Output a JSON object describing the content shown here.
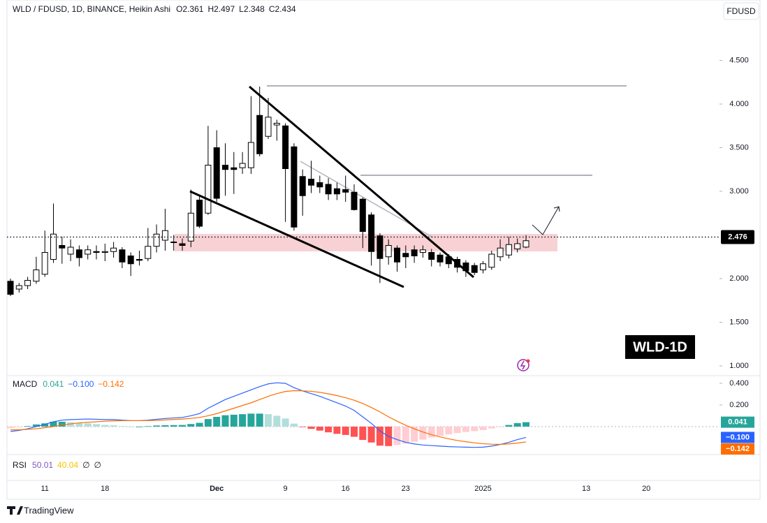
{
  "chart_data": [
    {
      "type": "candlestick",
      "title": "WLD / FDUSD, 1D, BINANCE, Heikin Ashi",
      "ohlc_labels": [
        "O",
        "H",
        "L",
        "C"
      ],
      "currency": "FDUSD",
      "watermark": "WLD-1D",
      "last_price": 2.476,
      "up_color": "#ffffff",
      "down_color": "#000000",
      "categories": [
        null,
        null,
        null,
        null,
        "11",
        null,
        null,
        null,
        null,
        null,
        null,
        "18",
        null,
        null,
        null,
        null,
        null,
        null,
        null,
        null,
        null,
        null,
        null,
        null,
        "Dec",
        null,
        null,
        null,
        null,
        null,
        null,
        null,
        "9",
        null,
        null,
        null,
        null,
        null,
        null,
        "16",
        null,
        null,
        null,
        null,
        null,
        null,
        "23",
        null,
        null,
        null,
        null,
        null,
        null,
        null,
        null,
        "2025",
        null,
        null,
        null,
        null,
        null,
        null,
        null,
        null,
        null,
        null,
        null,
        "13",
        null,
        null,
        null,
        null,
        null,
        null,
        "20",
        null,
        null,
        null,
        null,
        null,
        null,
        null
      ],
      "open": [
        1.97,
        1.88,
        1.92,
        1.97,
        2.05,
        2.22,
        2.38,
        2.28,
        2.33,
        2.28,
        2.31,
        2.3,
        2.31,
        2.33,
        2.26,
        2.22,
        2.23,
        2.37,
        2.44,
        2.42,
        2.4,
        2.43,
        2.9,
        2.75,
        3.5,
        3.3,
        3.27,
        3.27,
        3.27,
        3.87,
        3.63,
        3.76,
        3.75,
        3.51,
        3.17,
        3.14,
        3.1,
        3.08,
        3.03,
        3.02,
        2.99,
        2.91,
        2.73,
        2.49,
        2.25,
        2.35,
        2.29,
        2.33,
        2.3,
        2.3,
        2.27,
        2.25,
        2.22,
        2.18,
        2.15,
        2.1,
        2.13,
        2.25,
        2.27,
        2.34,
        2.361,
        null,
        null,
        null,
        null,
        null,
        null,
        null,
        null,
        null,
        null,
        null,
        null,
        null,
        null,
        null,
        null,
        null,
        null,
        null,
        null,
        null
      ],
      "high": [
        2.0,
        1.95,
        2.02,
        2.25,
        2.55,
        2.86,
        2.48,
        2.45,
        2.38,
        2.38,
        2.38,
        2.4,
        2.42,
        2.36,
        2.3,
        2.32,
        2.58,
        2.62,
        2.8,
        2.5,
        2.46,
        3.02,
        2.95,
        3.75,
        3.7,
        3.55,
        3.45,
        3.45,
        4.09,
        4.2,
        4.07,
        3.82,
        3.78,
        3.55,
        3.25,
        3.35,
        3.18,
        3.15,
        3.1,
        3.18,
        3.08,
        2.93,
        2.76,
        2.52,
        2.45,
        2.38,
        2.38,
        2.38,
        2.38,
        2.34,
        2.3,
        2.28,
        2.25,
        2.21,
        2.18,
        2.2,
        2.32,
        2.45,
        2.48,
        2.46,
        2.497,
        null,
        null,
        null,
        null,
        null,
        null,
        null,
        null,
        null,
        null,
        null,
        null,
        null,
        null,
        null,
        null,
        null,
        null,
        null,
        null,
        null
      ],
      "low": [
        1.8,
        1.84,
        1.88,
        1.94,
        2.02,
        2.18,
        2.17,
        2.2,
        2.14,
        2.22,
        2.22,
        2.2,
        2.24,
        2.12,
        2.03,
        2.15,
        2.2,
        2.3,
        2.32,
        2.32,
        2.32,
        2.36,
        2.58,
        2.73,
        2.88,
        2.95,
        2.97,
        3.2,
        3.2,
        3.4,
        3.6,
        3.58,
        2.65,
        2.55,
        2.72,
        2.98,
        2.98,
        2.9,
        2.9,
        2.88,
        2.78,
        2.35,
        2.15,
        1.95,
        2.16,
        2.08,
        2.12,
        2.18,
        2.24,
        2.14,
        2.14,
        2.12,
        2.07,
        2.02,
        2.04,
        2.06,
        2.1,
        2.2,
        2.23,
        2.3,
        2.348,
        null,
        null,
        null,
        null,
        null,
        null,
        null,
        null,
        null,
        null,
        null,
        null,
        null,
        null,
        null,
        null,
        null,
        null,
        null,
        null,
        null
      ],
      "close": [
        1.82,
        1.92,
        1.98,
        2.1,
        2.3,
        2.51,
        2.35,
        2.36,
        2.24,
        2.33,
        2.3,
        2.31,
        2.35,
        2.19,
        2.17,
        2.21,
        2.37,
        2.51,
        2.55,
        2.42,
        2.38,
        2.75,
        2.6,
        3.3,
        2.92,
        3.25,
        3.25,
        3.32,
        3.56,
        3.43,
        3.85,
        3.78,
        3.26,
        2.59,
        2.95,
        3.07,
        3.05,
        2.97,
        2.97,
        2.99,
        2.79,
        2.54,
        2.31,
        2.23,
        2.38,
        2.19,
        2.25,
        2.26,
        2.33,
        2.22,
        2.19,
        2.17,
        2.13,
        2.09,
        2.07,
        2.17,
        2.28,
        2.35,
        2.39,
        2.4,
        2.434,
        null,
        null,
        null,
        null,
        null,
        null,
        null,
        null,
        null,
        null,
        null,
        null,
        null,
        null,
        null,
        null,
        null,
        null,
        null,
        null,
        null
      ],
      "ylim": [
        0.888,
        5.192
      ],
      "yticks": [
        {
          "value": 1,
          "label": "1.000"
        },
        {
          "value": 1.5,
          "label": "1.500"
        },
        {
          "value": 2,
          "label": "2.000"
        },
        {
          "value": 3,
          "label": "3.000"
        },
        {
          "value": 3.5,
          "label": "3.500"
        },
        {
          "value": 4,
          "label": "4.000"
        },
        {
          "value": 4.5,
          "label": "4.500"
        }
      ]
    },
    {
      "type": "macd",
      "title": "MACD",
      "histogram": {
        "colors": [
          "#26a69a",
          "#b2dfdb",
          "#ff5252",
          "#ffcdd2"
        ],
        "color": "#26a69a",
        "last_label": "0.041",
        "values": [
          -0.015,
          -0.005,
          0.005,
          0.02,
          0.03,
          0.045,
          0.045,
          0.04,
          0.033,
          0.03,
          0.023,
          0.015,
          0.012,
          0.005,
          0,
          0,
          0.004,
          0.01,
          0.013,
          0.014,
          0.015,
          0.024,
          0.035,
          0.07,
          0.09,
          0.105,
          0.11,
          0.115,
          0.12,
          0.12,
          0.115,
          0.1,
          0.075,
          0.028,
          -0.001,
          -0.021,
          -0.037,
          -0.053,
          -0.067,
          -0.077,
          -0.094,
          -0.123,
          -0.147,
          -0.176,
          -0.18,
          -0.17,
          -0.157,
          -0.14,
          -0.12,
          -0.1,
          -0.085,
          -0.072,
          -0.06,
          -0.05,
          -0.042,
          -0.032,
          -0.017,
          -0.001,
          0.015,
          0.032,
          0.041,
          null,
          null,
          null,
          null,
          null,
          null,
          null,
          null,
          null,
          null,
          null,
          null,
          null,
          null,
          null,
          null,
          null,
          null,
          null,
          null,
          null
        ]
      },
      "macd": {
        "color": "#2962ff",
        "last_label": "−0.100",
        "values": [
          -0.045,
          -0.035,
          -0.02,
          0,
          0.02,
          0.045,
          0.06,
          0.065,
          0.068,
          0.07,
          0.068,
          0.065,
          0.065,
          0.06,
          0.055,
          0.055,
          0.06,
          0.068,
          0.075,
          0.08,
          0.085,
          0.1,
          0.12,
          0.17,
          0.21,
          0.25,
          0.28,
          0.31,
          0.34,
          0.37,
          0.395,
          0.405,
          0.4,
          0.36,
          0.33,
          0.305,
          0.28,
          0.25,
          0.22,
          0.19,
          0.15,
          0.09,
          0.03,
          -0.04,
          -0.09,
          -0.12,
          -0.145,
          -0.16,
          -0.17,
          -0.175,
          -0.18,
          -0.185,
          -0.188,
          -0.19,
          -0.192,
          -0.19,
          -0.18,
          -0.165,
          -0.145,
          -0.12,
          -0.1,
          null,
          null,
          null,
          null,
          null,
          null,
          null,
          null,
          null,
          null,
          null,
          null,
          null,
          null,
          null,
          null,
          null,
          null,
          null,
          null,
          null
        ]
      },
      "signal": {
        "color": "#ff6d00",
        "last_label": "−0.142",
        "values": [
          -0.03,
          -0.03,
          -0.025,
          -0.02,
          -0.01,
          0,
          0.015,
          0.025,
          0.035,
          0.04,
          0.045,
          0.05,
          0.053,
          0.055,
          0.055,
          0.055,
          0.056,
          0.058,
          0.062,
          0.066,
          0.07,
          0.076,
          0.085,
          0.1,
          0.12,
          0.145,
          0.17,
          0.195,
          0.22,
          0.25,
          0.28,
          0.305,
          0.325,
          0.332,
          0.331,
          0.326,
          0.317,
          0.303,
          0.287,
          0.267,
          0.244,
          0.213,
          0.177,
          0.136,
          0.09,
          0.05,
          0.012,
          -0.02,
          -0.05,
          -0.075,
          -0.095,
          -0.113,
          -0.128,
          -0.14,
          -0.15,
          -0.158,
          -0.163,
          -0.164,
          -0.16,
          -0.152,
          -0.142,
          null,
          null,
          null,
          null,
          null,
          null,
          null,
          null,
          null,
          null,
          null,
          null,
          null,
          null,
          null,
          null,
          null,
          null,
          null,
          null,
          null
        ]
      },
      "ylim": [
        -0.252,
        0.458
      ],
      "yticks": [
        {
          "value": 0.2,
          "label": "0.200"
        },
        {
          "value": 0.4,
          "label": "0.400"
        }
      ]
    }
  ],
  "rsi": {
    "title": "RSI",
    "values": [
      50.01,
      40.04
    ],
    "colors": [
      "#7e57c2",
      "#f7c500"
    ],
    "extras": [
      "∅",
      "∅"
    ]
  },
  "brand": "TradingView"
}
